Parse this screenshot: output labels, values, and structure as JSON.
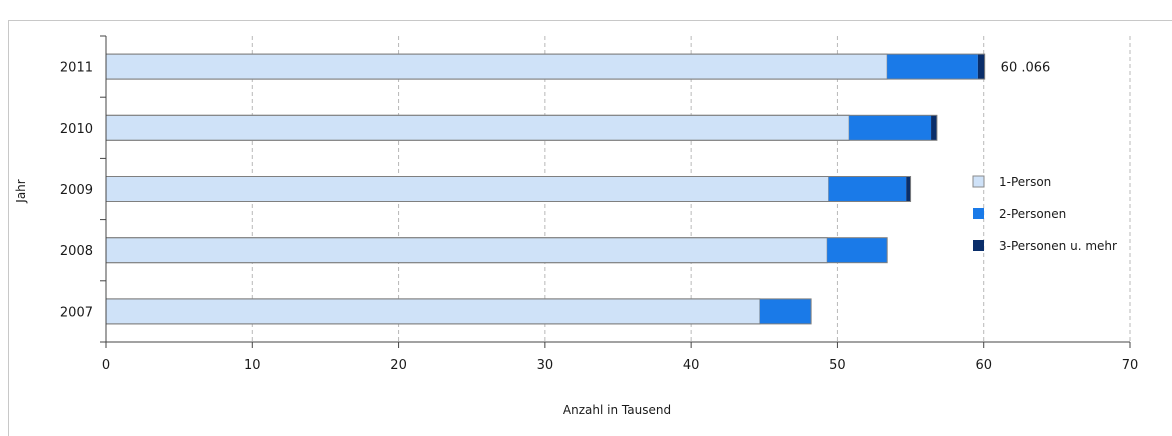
{
  "chart_data": {
    "type": "bar",
    "orientation": "horizontal",
    "stacked": true,
    "categories": [
      "2007",
      "2008",
      "2009",
      "2010",
      "2011"
    ],
    "series": [
      {
        "name": "1-Person",
        "values": [
          44.7,
          49.3,
          49.4,
          50.8,
          53.4
        ],
        "color": "#cfe2f8"
      },
      {
        "name": "2-Personen",
        "values": [
          3.5,
          4.1,
          5.3,
          5.6,
          6.2
        ],
        "color": "#1a7ae8"
      },
      {
        "name": "3-Personen u. mehr",
        "values": [
          0.0,
          0.0,
          0.3,
          0.4,
          0.466
        ],
        "color": "#0a2e6a"
      }
    ],
    "data_labels": [
      {
        "category": "2011",
        "text": "60 .066"
      }
    ],
    "xlabel": "Anzahl in Tausend",
    "ylabel": "Jahr",
    "xlim": [
      0,
      70
    ],
    "xticks": [
      0,
      10,
      20,
      30,
      40,
      50,
      60,
      70
    ],
    "grid": {
      "vertical": true,
      "style": "dashed"
    },
    "legend_position": "right"
  }
}
